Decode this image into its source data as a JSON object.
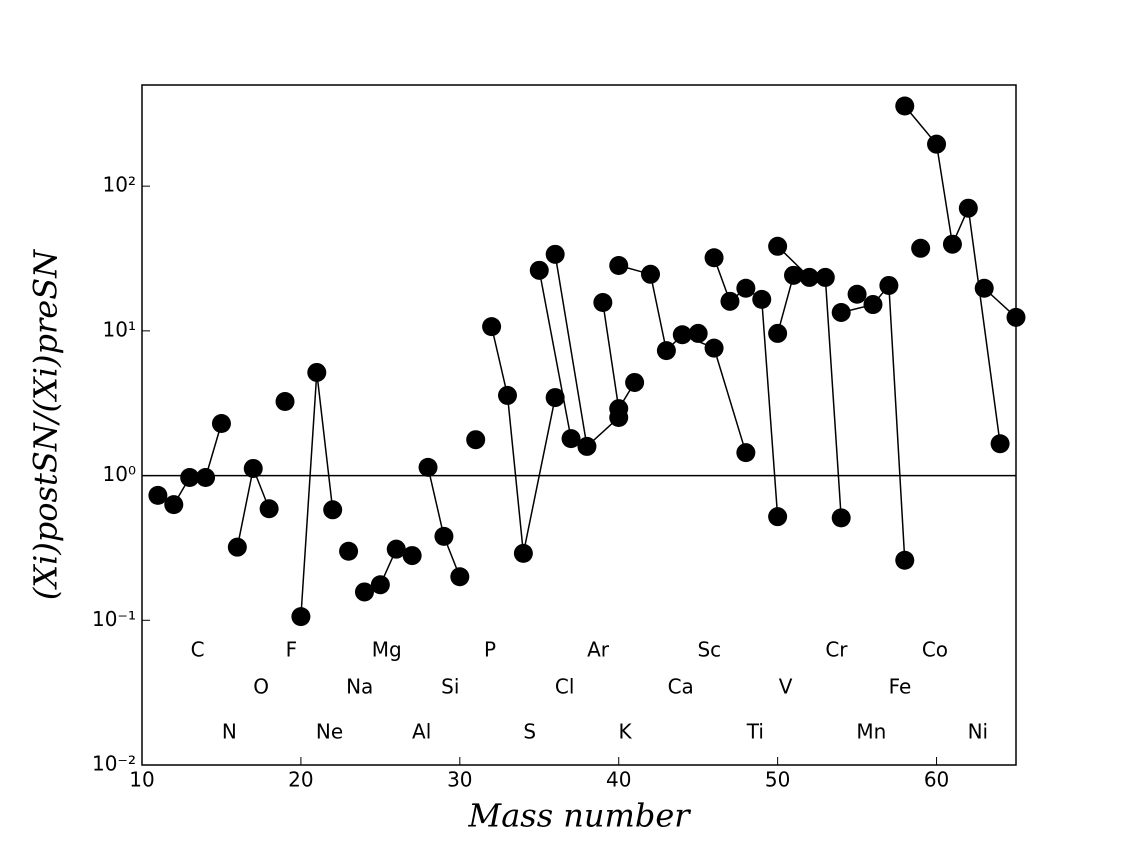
{
  "chart_data": {
    "type": "line",
    "yscale": "log",
    "xlabel": "Mass number",
    "ylabel": "(Xi)postSN/(Xi)preSN",
    "xlim": [
      10,
      65
    ],
    "xticks": [
      10,
      20,
      30,
      40,
      50,
      60
    ],
    "ylim": [
      0.01,
      500
    ],
    "yticks": [
      {
        "value": 0.01,
        "label": "10⁻²"
      },
      {
        "value": 0.1,
        "label": "10⁻¹"
      },
      {
        "value": 1,
        "label": "10⁰"
      },
      {
        "value": 10,
        "label": "10¹"
      },
      {
        "value": 100,
        "label": "10²"
      }
    ],
    "hline": 1,
    "color": "#000000",
    "series": [
      {
        "x": [
          11,
          12,
          13,
          14,
          15
        ],
        "values": [
          0.73,
          0.63,
          0.97,
          0.97,
          2.29
        ]
      },
      {
        "x": [
          16,
          17,
          18
        ],
        "values": [
          0.32,
          1.12,
          0.59
        ]
      },
      {
        "x": [
          19
        ],
        "values": [
          3.25
        ]
      },
      {
        "x": [
          20,
          21,
          22
        ],
        "values": [
          0.106,
          5.16,
          0.58
        ]
      },
      {
        "x": [
          23
        ],
        "values": [
          0.3
        ]
      },
      {
        "x": [
          24,
          25,
          26
        ],
        "values": [
          0.157,
          0.176,
          0.31
        ]
      },
      {
        "x": [
          27
        ],
        "values": [
          0.28
        ]
      },
      {
        "x": [
          28,
          29,
          30
        ],
        "values": [
          1.14,
          0.38,
          0.2
        ]
      },
      {
        "x": [
          31
        ],
        "values": [
          1.77
        ]
      },
      {
        "x": [
          32,
          33,
          34,
          36
        ],
        "values": [
          10.7,
          3.58,
          0.29,
          3.46
        ]
      },
      {
        "x": [
          35,
          37
        ],
        "values": [
          26.2,
          1.8
        ]
      },
      {
        "x": [
          36,
          38,
          40
        ],
        "values": [
          33.8,
          1.59,
          2.52
        ]
      },
      {
        "x": [
          39,
          40,
          41
        ],
        "values": [
          15.7,
          2.9,
          4.4
        ]
      },
      {
        "x": [
          40,
          42,
          43,
          44,
          46,
          48
        ],
        "values": [
          28.3,
          24.6,
          7.3,
          9.4,
          7.6,
          1.44
        ]
      },
      {
        "x": [
          45
        ],
        "values": [
          9.6
        ]
      },
      {
        "x": [
          46,
          47,
          48,
          49,
          50
        ],
        "values": [
          32,
          16,
          19.7,
          16.5,
          0.52
        ]
      },
      {
        "x": [
          50,
          51
        ],
        "values": [
          9.6,
          24.2
        ]
      },
      {
        "x": [
          50,
          52,
          53,
          54
        ],
        "values": [
          38.4,
          23.4,
          23.4,
          0.51
        ]
      },
      {
        "x": [
          55
        ],
        "values": [
          17.9
        ]
      },
      {
        "x": [
          54,
          56,
          57,
          58
        ],
        "values": [
          13.4,
          15.2,
          20.6,
          0.26
        ]
      },
      {
        "x": [
          59
        ],
        "values": [
          37.2
        ]
      },
      {
        "x": [
          58,
          60,
          61,
          62,
          64
        ],
        "values": [
          358,
          195,
          39.7,
          70.4,
          1.66
        ]
      },
      {
        "x": [
          63,
          65
        ],
        "values": [
          19.7,
          12.4
        ]
      }
    ],
    "annotations": [
      {
        "text": "C",
        "x": 13.5,
        "y": 0.0615
      },
      {
        "text": "F",
        "x": 19.4,
        "y": 0.0615
      },
      {
        "text": "Mg",
        "x": 25.4,
        "y": 0.0615
      },
      {
        "text": "P",
        "x": 31.9,
        "y": 0.0615
      },
      {
        "text": "Ar",
        "x": 38.7,
        "y": 0.0615
      },
      {
        "text": "Sc",
        "x": 45.7,
        "y": 0.0615
      },
      {
        "text": "Cr",
        "x": 53.7,
        "y": 0.0615
      },
      {
        "text": "Co",
        "x": 59.9,
        "y": 0.0615
      },
      {
        "text": "O",
        "x": 17.5,
        "y": 0.034
      },
      {
        "text": "Na",
        "x": 23.7,
        "y": 0.034
      },
      {
        "text": "Si",
        "x": 29.4,
        "y": 0.034
      },
      {
        "text": "Cl",
        "x": 36.6,
        "y": 0.034
      },
      {
        "text": "Ca",
        "x": 43.9,
        "y": 0.034
      },
      {
        "text": "V",
        "x": 50.5,
        "y": 0.034
      },
      {
        "text": "Fe",
        "x": 57.7,
        "y": 0.034
      },
      {
        "text": "N",
        "x": 15.5,
        "y": 0.0166
      },
      {
        "text": "Ne",
        "x": 21.8,
        "y": 0.0166
      },
      {
        "text": "Al",
        "x": 27.6,
        "y": 0.0166
      },
      {
        "text": "S",
        "x": 34.4,
        "y": 0.0166
      },
      {
        "text": "K",
        "x": 40.4,
        "y": 0.0166
      },
      {
        "text": "Ti",
        "x": 48.6,
        "y": 0.0166
      },
      {
        "text": "Mn",
        "x": 55.9,
        "y": 0.0166
      },
      {
        "text": "Ni",
        "x": 62.6,
        "y": 0.0166
      }
    ]
  }
}
